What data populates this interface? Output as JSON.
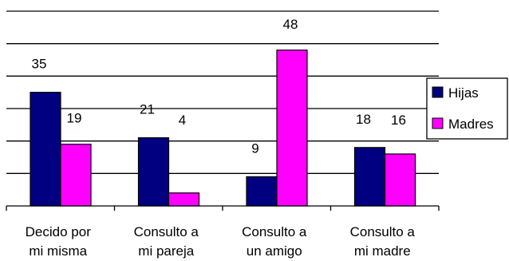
{
  "chart_data": {
    "type": "bar",
    "categories": [
      [
        "Decido por",
        "mi misma"
      ],
      [
        "Consulto a",
        "mi pareja"
      ],
      [
        "Consulto a",
        "un amigo"
      ],
      [
        "Consulto a",
        "mi madre"
      ]
    ],
    "series": [
      {
        "name": "Hijas",
        "color": "#000080",
        "values": [
          35,
          21,
          9,
          18
        ]
      },
      {
        "name": "Madres",
        "color": "#ff00ff",
        "values": [
          19,
          4,
          48,
          16
        ]
      }
    ],
    "ylim": [
      0,
      60
    ],
    "grid": true,
    "legend": "right"
  }
}
